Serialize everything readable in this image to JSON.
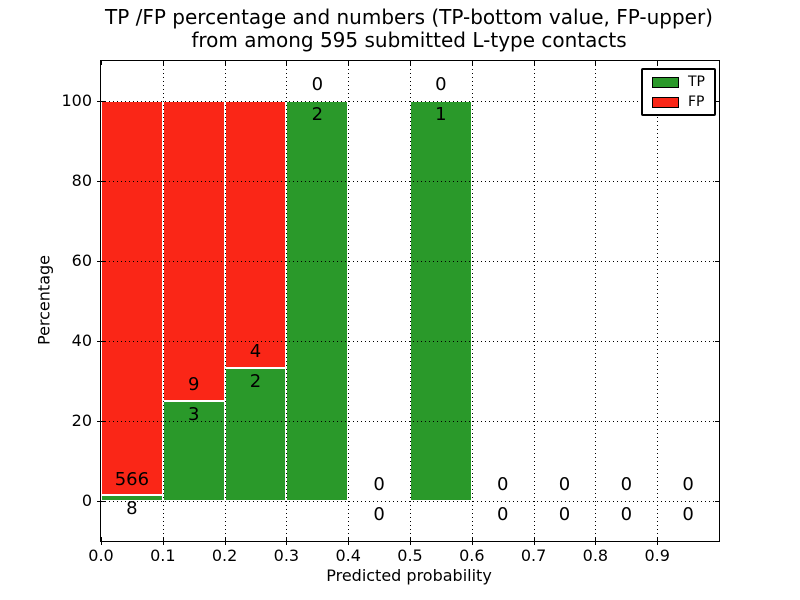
{
  "chart_data": {
    "type": "bar",
    "stacked": true,
    "title_lines": [
      "TP /FP percentage and numbers (TP-bottom value, FP-upper)",
      "from among 595 submitted L-type contacts"
    ],
    "xlabel": "Predicted probability",
    "ylabel": "Percentage",
    "xlim": [
      0.0,
      1.0
    ],
    "ylim": [
      -10,
      110
    ],
    "x_ticks": [
      {
        "value": 0.0,
        "label": "0.0"
      },
      {
        "value": 0.1,
        "label": "0.1"
      },
      {
        "value": 0.2,
        "label": "0.2"
      },
      {
        "value": 0.3,
        "label": "0.3"
      },
      {
        "value": 0.4,
        "label": "0.4"
      },
      {
        "value": 0.5,
        "label": "0.5"
      },
      {
        "value": 0.6,
        "label": "0.6"
      },
      {
        "value": 0.7,
        "label": "0.7"
      },
      {
        "value": 0.8,
        "label": "0.8"
      },
      {
        "value": 0.9,
        "label": "0.9"
      }
    ],
    "y_ticks": [
      {
        "value": 0,
        "label": "0"
      },
      {
        "value": 20,
        "label": "20"
      },
      {
        "value": 40,
        "label": "40"
      },
      {
        "value": 60,
        "label": "60"
      },
      {
        "value": 80,
        "label": "80"
      },
      {
        "value": 100,
        "label": "100"
      }
    ],
    "grid_style": "dotted",
    "total_submitted": 595,
    "colors": {
      "tp": "#2a992a",
      "fp": "#fa2617",
      "axis": "#000000",
      "background": "#ffffff"
    },
    "legend": {
      "position": "upper-right",
      "entries": [
        {
          "series": "tp",
          "label": "TP"
        },
        {
          "series": "fp",
          "label": "FP"
        }
      ]
    },
    "bins": [
      {
        "range": [
          0.0,
          0.1
        ],
        "tp": 8,
        "fp": 566
      },
      {
        "range": [
          0.1,
          0.2
        ],
        "tp": 3,
        "fp": 9
      },
      {
        "range": [
          0.2,
          0.3
        ],
        "tp": 2,
        "fp": 4
      },
      {
        "range": [
          0.3,
          0.4
        ],
        "tp": 2,
        "fp": 0
      },
      {
        "range": [
          0.4,
          0.5
        ],
        "tp": 0,
        "fp": 0
      },
      {
        "range": [
          0.5,
          0.6
        ],
        "tp": 1,
        "fp": 0
      },
      {
        "range": [
          0.6,
          0.7
        ],
        "tp": 0,
        "fp": 0
      },
      {
        "range": [
          0.7,
          0.8
        ],
        "tp": 0,
        "fp": 0
      },
      {
        "range": [
          0.8,
          0.9
        ],
        "tp": 0,
        "fp": 0
      },
      {
        "range": [
          0.9,
          1.0
        ],
        "tp": 0,
        "fp": 0
      }
    ]
  }
}
